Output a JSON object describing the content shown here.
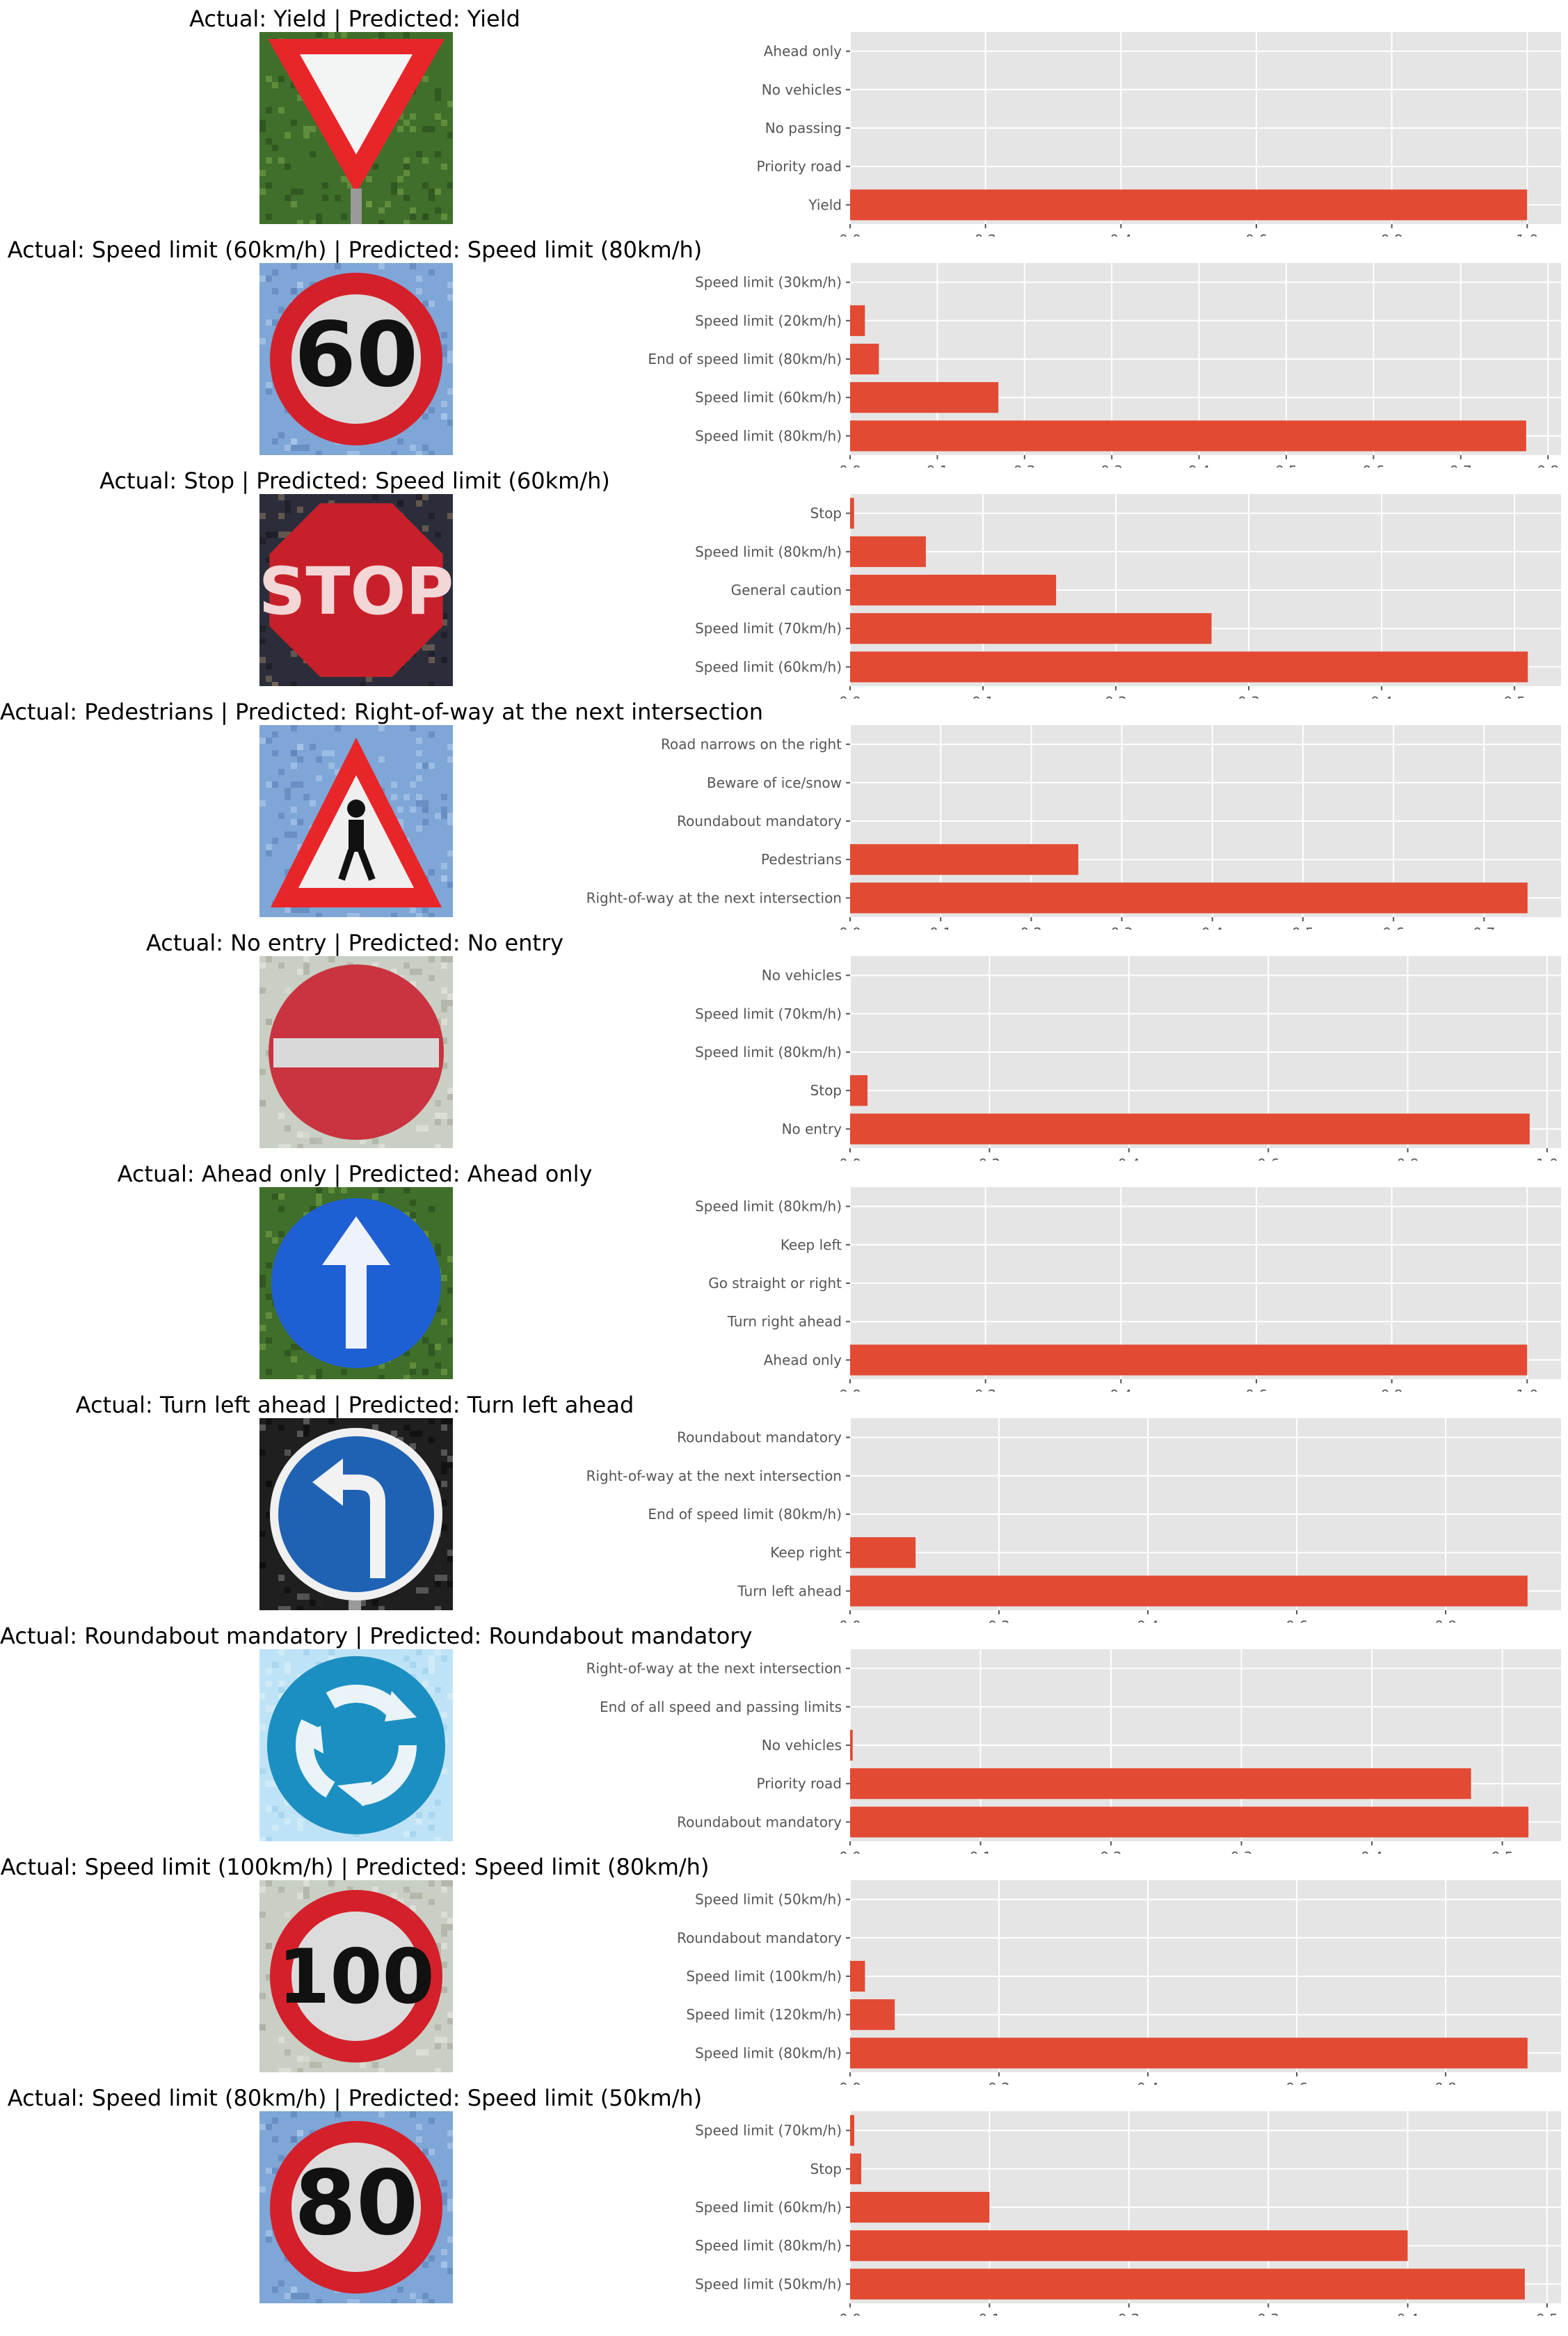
{
  "colors": {
    "bar": "#E24A33",
    "panel": "#E5E5E5",
    "grid": "#FFFFFF",
    "tick_text": "#555555"
  },
  "chart_data": [
    {
      "type": "bar",
      "orientation": "horizontal",
      "title": "Actual: Yield | Predicted: Yield",
      "image": {
        "sign": "yield",
        "background": "foliage"
      },
      "categories": [
        "Yield",
        "Priority road",
        "No passing",
        "No vehicles",
        "Ahead only"
      ],
      "values": [
        1.0,
        0.0,
        0.0,
        0.0,
        0.0
      ],
      "xlim": [
        0,
        1.05
      ],
      "xticks": [
        "0.0",
        "0.2",
        "0.4",
        "0.6",
        "0.8",
        "1.0"
      ],
      "grid": true
    },
    {
      "type": "bar",
      "orientation": "horizontal",
      "title": "Actual: Speed limit (60km/h) | Predicted: Speed limit (80km/h)",
      "image": {
        "sign": "speed",
        "text": "60",
        "background": "sky"
      },
      "categories": [
        "Speed limit (80km/h)",
        "Speed limit (60km/h)",
        "End of speed limit (80km/h)",
        "Speed limit (20km/h)",
        "Speed limit (30km/h)"
      ],
      "values": [
        0.775,
        0.17,
        0.033,
        0.017,
        0.0
      ],
      "xlim": [
        0,
        0.815
      ],
      "xticks": [
        "0.0",
        "0.1",
        "0.2",
        "0.3",
        "0.4",
        "0.5",
        "0.6",
        "0.7",
        "0.8"
      ],
      "grid": true
    },
    {
      "type": "bar",
      "orientation": "horizontal",
      "title": "Actual: Stop | Predicted: Speed limit (60km/h)",
      "image": {
        "sign": "stop",
        "text": "STOP",
        "background": "night"
      },
      "categories": [
        "Speed limit (60km/h)",
        "Speed limit (70km/h)",
        "General caution",
        "Speed limit (80km/h)",
        "Stop"
      ],
      "values": [
        0.51,
        0.272,
        0.155,
        0.057,
        0.003
      ],
      "xlim": [
        0,
        0.535
      ],
      "xticks": [
        "0.0",
        "0.1",
        "0.2",
        "0.3",
        "0.4",
        "0.5"
      ],
      "grid": true
    },
    {
      "type": "bar",
      "orientation": "horizontal",
      "title": "Actual: Pedestrians | Predicted: Right-of-way at the next intersection",
      "image": {
        "sign": "pedestrian",
        "background": "sky"
      },
      "categories": [
        "Right-of-way at the next intersection",
        "Pedestrians",
        "Roundabout mandatory",
        "Beware of ice/snow",
        "Road narrows on the right"
      ],
      "values": [
        0.748,
        0.252,
        0.0,
        0.0,
        0.0
      ],
      "xlim": [
        0,
        0.785
      ],
      "xticks": [
        "0.0",
        "0.1",
        "0.2",
        "0.3",
        "0.4",
        "0.5",
        "0.6",
        "0.7"
      ],
      "grid": true
    },
    {
      "type": "bar",
      "orientation": "horizontal",
      "title": "Actual: No entry | Predicted: No entry",
      "image": {
        "sign": "no-entry",
        "background": "pale"
      },
      "categories": [
        "No entry",
        "Stop",
        "Speed limit (80km/h)",
        "Speed limit (70km/h)",
        "No vehicles"
      ],
      "values": [
        0.975,
        0.025,
        0.0,
        0.0,
        0.0
      ],
      "xlim": [
        0,
        1.02
      ],
      "xticks": [
        "0.0",
        "0.2",
        "0.4",
        "0.6",
        "0.8",
        "1.0"
      ],
      "grid": true
    },
    {
      "type": "bar",
      "orientation": "horizontal",
      "title": "Actual: Ahead only | Predicted: Ahead only",
      "image": {
        "sign": "ahead",
        "background": "foliage"
      },
      "categories": [
        "Ahead only",
        "Turn right ahead",
        "Go straight or right",
        "Keep left",
        "Speed limit (80km/h)"
      ],
      "values": [
        1.0,
        0.0,
        0.0,
        0.0,
        0.0
      ],
      "xlim": [
        0,
        1.05
      ],
      "xticks": [
        "0.0",
        "0.2",
        "0.4",
        "0.6",
        "0.8",
        "1.0"
      ],
      "grid": true
    },
    {
      "type": "bar",
      "orientation": "horizontal",
      "title": "Actual: Turn left ahead | Predicted: Turn left ahead",
      "image": {
        "sign": "turn-left",
        "background": "dark"
      },
      "categories": [
        "Turn left ahead",
        "Keep right",
        "End of speed limit (80km/h)",
        "Right-of-way at the next intersection",
        "Roundabout mandatory"
      ],
      "values": [
        0.91,
        0.088,
        0.0,
        0.0,
        0.0
      ],
      "xlim": [
        0,
        0.955
      ],
      "xticks": [
        "0.0",
        "0.2",
        "0.4",
        "0.6",
        "0.8"
      ],
      "grid": true
    },
    {
      "type": "bar",
      "orientation": "horizontal",
      "title": "Actual: Roundabout mandatory | Predicted: Roundabout mandatory",
      "image": {
        "sign": "roundabout",
        "background": "light-sky"
      },
      "categories": [
        "Roundabout mandatory",
        "Priority road",
        "No vehicles",
        "End of all speed and passing limits",
        "Right-of-way at the next intersection"
      ],
      "values": [
        0.52,
        0.476,
        0.002,
        0.0,
        0.0
      ],
      "xlim": [
        0,
        0.545
      ],
      "xticks": [
        "0.0",
        "0.1",
        "0.2",
        "0.3",
        "0.4",
        "0.5"
      ],
      "grid": true
    },
    {
      "type": "bar",
      "orientation": "horizontal",
      "title": "Actual: Speed limit (100km/h) | Predicted: Speed limit (80km/h)",
      "image": {
        "sign": "speed",
        "text": "100",
        "background": "pale"
      },
      "categories": [
        "Speed limit (80km/h)",
        "Speed limit (120km/h)",
        "Speed limit (100km/h)",
        "Roundabout mandatory",
        "Speed limit (50km/h)"
      ],
      "values": [
        0.91,
        0.06,
        0.02,
        0.0,
        0.0
      ],
      "xlim": [
        0,
        0.955
      ],
      "xticks": [
        "0.0",
        "0.2",
        "0.4",
        "0.6",
        "0.8"
      ],
      "grid": true
    },
    {
      "type": "bar",
      "orientation": "horizontal",
      "title": "Actual: Speed limit (80km/h) | Predicted: Speed limit (50km/h)",
      "image": {
        "sign": "speed",
        "text": "80",
        "background": "sky"
      },
      "categories": [
        "Speed limit (50km/h)",
        "Speed limit (80km/h)",
        "Speed limit (60km/h)",
        "Stop",
        "Speed limit (70km/h)"
      ],
      "values": [
        0.484,
        0.4,
        0.1,
        0.008,
        0.003
      ],
      "xlim": [
        0,
        0.51
      ],
      "xticks": [
        "0.0",
        "0.1",
        "0.2",
        "0.3",
        "0.4",
        "0.5"
      ],
      "grid": true
    }
  ]
}
